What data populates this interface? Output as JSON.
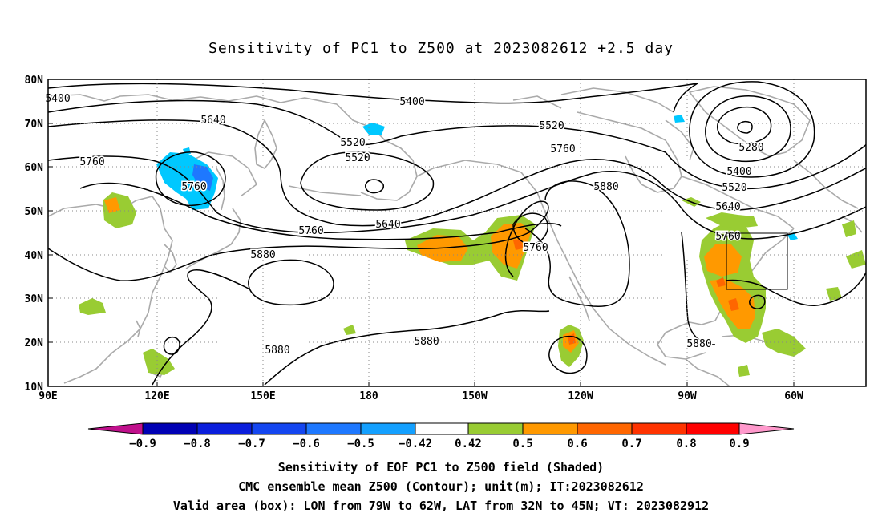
{
  "title": "Sensitivity of PC1 to Z500 at 2023082612 +2.5 day",
  "lat_labels": [
    "80N",
    "70N",
    "60N",
    "50N",
    "40N",
    "30N",
    "20N",
    "10N"
  ],
  "lon_labels": [
    "90E",
    "120E",
    "150E",
    "180",
    "150W",
    "120W",
    "90W",
    "60W"
  ],
  "contour_labels": [
    {
      "text": "5400"
    },
    {
      "text": "5400"
    },
    {
      "text": "5640"
    },
    {
      "text": "5520"
    },
    {
      "text": "5520"
    },
    {
      "text": "5520"
    },
    {
      "text": "5760"
    },
    {
      "text": "5760"
    },
    {
      "text": "5760"
    },
    {
      "text": "5880"
    },
    {
      "text": "5640"
    },
    {
      "text": "5760"
    },
    {
      "text": "5280"
    },
    {
      "text": "5400"
    },
    {
      "text": "5520"
    },
    {
      "text": "5640"
    },
    {
      "text": "5760"
    },
    {
      "text": "5880"
    },
    {
      "text": "5760"
    },
    {
      "text": "5880"
    },
    {
      "text": "5880"
    },
    {
      "text": "5880"
    }
  ],
  "colorbar": {
    "labels": [
      "−0.9",
      "−0.8",
      "−0.7",
      "−0.6",
      "−0.5",
      "−0.42",
      "0.42",
      "0.5",
      "0.6",
      "0.7",
      "0.8",
      "0.9"
    ],
    "colors": {
      "low_tri": "#c0108c",
      "bins": [
        "#0000b4",
        "#0a1edc",
        "#1446f0",
        "#1e78ff",
        "#14a0ff",
        "#00c8ff",
        "#ffffff",
        "#99cc33",
        "#ff9900",
        "#ff6600",
        "#ff3300",
        "#ff0000"
      ],
      "high_tri": "#ff99cc"
    }
  },
  "colors": {
    "contour": "#000000",
    "coast": "#aaaaaa",
    "grid": "#888888",
    "pos_low": "#99cc33",
    "pos_mid": "#ff9900",
    "pos_high": "#ff6600",
    "pos_top": "#ff3300",
    "neg_low": "#00c8ff",
    "neg_mid": "#1e78ff"
  },
  "captions": {
    "line1": "Sensitivity of EOF PC1 to Z500 field (Shaded)",
    "line2": "CMC ensemble mean Z500 (Contour); unit(m); IT:2023082612",
    "line3": "Valid area (box): LON from 79W to 62W, LAT from 32N to 45N; VT: 2023082912"
  }
}
